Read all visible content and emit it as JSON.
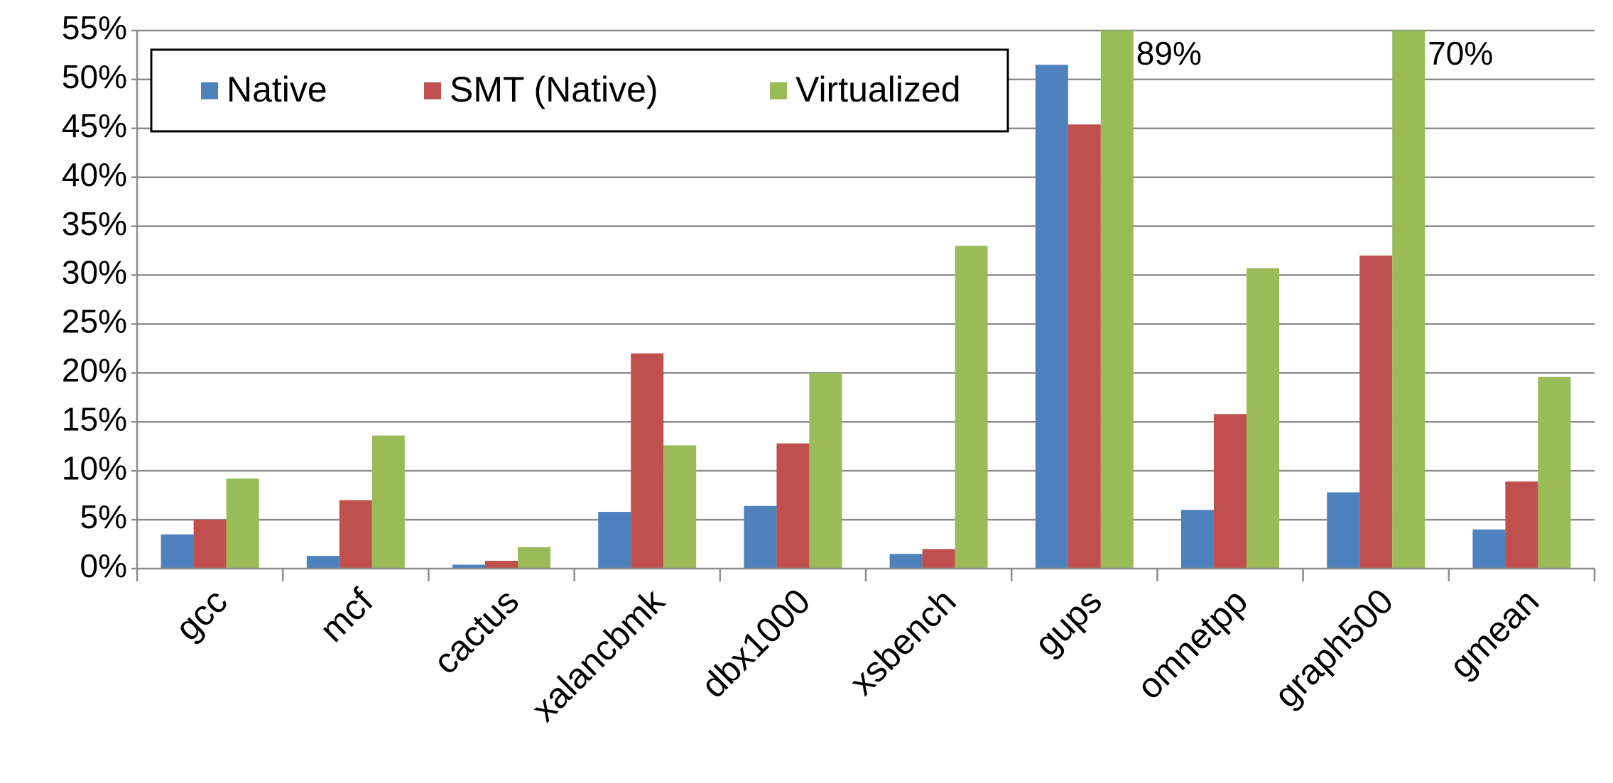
{
  "chart_data": {
    "type": "bar",
    "categories": [
      "gcc",
      "mcf",
      "cactus",
      "xalancbmk",
      "dbx1000",
      "xsbench",
      "gups",
      "omnetpp",
      "graph500",
      "gmean"
    ],
    "series": [
      {
        "name": "Native",
        "color": "#4f81bd",
        "values": [
          3.5,
          1.3,
          0.4,
          5.8,
          6.4,
          1.5,
          51.5,
          6.0,
          7.8,
          4.0
        ]
      },
      {
        "name": "SMT (Native)",
        "color": "#c0504d",
        "values": [
          5.0,
          7.0,
          0.8,
          22.0,
          12.8,
          2.0,
          45.4,
          15.8,
          32.0,
          8.9
        ]
      },
      {
        "name": "Virtualized",
        "color": "#9bbb59",
        "values": [
          9.2,
          13.6,
          2.2,
          12.6,
          20.0,
          33.0,
          89,
          30.7,
          70,
          19.6
        ],
        "value_labels": [
          null,
          null,
          null,
          null,
          null,
          null,
          "89%",
          null,
          "70%",
          null
        ]
      }
    ],
    "ylim": [
      0,
      55
    ],
    "yticks": [
      {
        "value": 0,
        "label": "0%"
      },
      {
        "value": 5,
        "label": "5%"
      },
      {
        "value": 10,
        "label": "10%"
      },
      {
        "value": 15,
        "label": "15%"
      },
      {
        "value": 20,
        "label": "20%"
      },
      {
        "value": 25,
        "label": "25%"
      },
      {
        "value": 30,
        "label": "30%"
      },
      {
        "value": 35,
        "label": "35%"
      },
      {
        "value": 40,
        "label": "40%"
      },
      {
        "value": 45,
        "label": "45%"
      },
      {
        "value": 50,
        "label": "50%"
      },
      {
        "value": 55,
        "label": "55%"
      }
    ],
    "grid": true,
    "legend": "top-left"
  }
}
